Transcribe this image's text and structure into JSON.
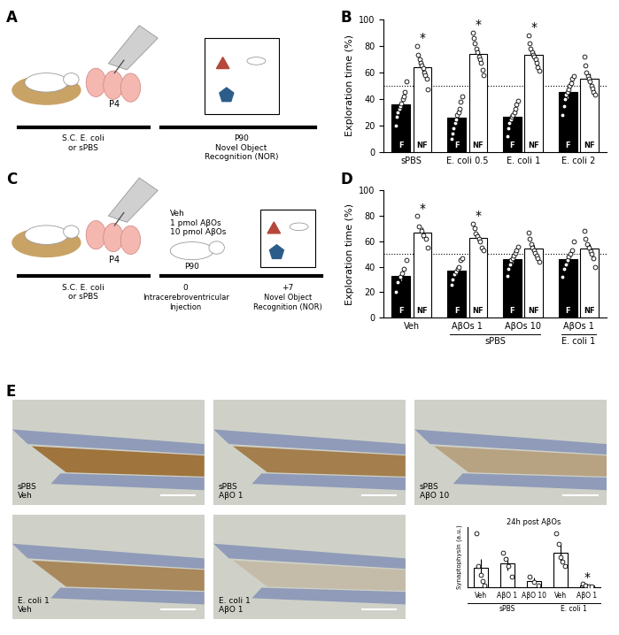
{
  "chart_data": [
    {
      "type": "bar",
      "letter": "B",
      "ylabel": "Exploration time (%)",
      "categories": [
        "sPBS",
        "E. coli 0.5",
        "E. coli 1",
        "E. coli 2"
      ],
      "series": [
        {
          "name": "F",
          "color": "#000000",
          "values": [
            36,
            26,
            27,
            45
          ],
          "errors": [
            4,
            4,
            3,
            4
          ],
          "points": [
            [
              20,
              27,
              30,
              33,
              35,
              37,
              40,
              42,
              45,
              53
            ],
            [
              10,
              14,
              18,
              22,
              25,
              28,
              30,
              33,
              38,
              42
            ],
            [
              12,
              18,
              22,
              25,
              27,
              28,
              30,
              33,
              36,
              39
            ],
            [
              28,
              35,
              40,
              43,
              45,
              47,
              50,
              52,
              55,
              57
            ]
          ]
        },
        {
          "name": "NF",
          "color": "#ffffff",
          "values": [
            64,
            74,
            73,
            55
          ],
          "errors": [
            4,
            4,
            3,
            4
          ],
          "points": [
            [
              80,
              73,
              70,
              67,
              65,
              63,
              60,
              58,
              55,
              47
            ],
            [
              90,
              86,
              82,
              78,
              75,
              72,
              70,
              67,
              62,
              58
            ],
            [
              88,
              82,
              78,
              75,
              73,
              72,
              70,
              67,
              64,
              61
            ],
            [
              72,
              65,
              60,
              57,
              55,
              53,
              50,
              48,
              45,
              43
            ]
          ]
        }
      ],
      "ylim": [
        0,
        100
      ],
      "yticks": [
        0,
        20,
        40,
        60,
        80,
        100
      ],
      "reference_line": 50,
      "annotations": [
        {
          "text": "*",
          "category": 0,
          "series": "NF"
        },
        {
          "text": "*",
          "category": 1,
          "series": "NF"
        },
        {
          "text": "*",
          "category": 2,
          "series": "NF"
        }
      ]
    },
    {
      "type": "bar",
      "letter": "D",
      "ylabel": "Exploration time (%)",
      "categories": [
        "Veh",
        "AβOs 1",
        "AβOs 10",
        "AβOs 1"
      ],
      "groups": [
        {
          "label": "sPBS",
          "categories": [
            1,
            2
          ]
        },
        {
          "label": "E. coli 1",
          "categories": [
            3
          ]
        }
      ],
      "series": [
        {
          "name": "F",
          "color": "#000000",
          "values": [
            33,
            37,
            46,
            46
          ],
          "errors": [
            4,
            3,
            3,
            4
          ],
          "points": [
            [
              20,
              28,
              32,
              35,
              38,
              45
            ],
            [
              26,
              30,
              34,
              36,
              38,
              40,
              45,
              47
            ],
            [
              33,
              38,
              42,
              45,
              47,
              49,
              51,
              53,
              56
            ],
            [
              32,
              38,
              42,
              45,
              48,
              50,
              53,
              60
            ]
          ]
        },
        {
          "name": "NF",
          "color": "#ffffff",
          "values": [
            67,
            63,
            54,
            54
          ],
          "errors": [
            4,
            3,
            3,
            4
          ],
          "points": [
            [
              80,
              72,
              68,
              65,
              62,
              55
            ],
            [
              74,
              70,
              66,
              64,
              62,
              60,
              55,
              53
            ],
            [
              67,
              62,
              58,
              55,
              53,
              51,
              49,
              47,
              44
            ],
            [
              68,
              62,
              58,
              55,
              52,
              50,
              47,
              40
            ]
          ]
        }
      ],
      "ylim": [
        0,
        100
      ],
      "yticks": [
        0,
        20,
        40,
        60,
        80,
        100
      ],
      "reference_line": 50,
      "annotations": [
        {
          "text": "*",
          "category": 0,
          "series": "NF"
        },
        {
          "text": "*",
          "category": 1,
          "series": "NF"
        }
      ]
    },
    {
      "type": "bar",
      "title": "24h post AβOs",
      "ylabel": "Synaptophysin (a.u.)",
      "categories": [
        "Veh",
        "AβO 1",
        "AβO 10",
        "Veh",
        "AβO 1"
      ],
      "groups": [
        {
          "label": "sPBS",
          "categories": [
            0,
            1,
            2
          ]
        },
        {
          "label": "E. coli 1",
          "categories": [
            3,
            4
          ]
        }
      ],
      "series": [
        {
          "color": "#ffffff",
          "values": [
            9,
            11,
            3,
            16,
            1
          ],
          "errors": [
            4,
            3,
            1.5,
            4,
            0.5
          ],
          "points": [
            [
              25,
              10,
              6,
              3,
              1
            ],
            [
              16,
              13,
              10,
              5
            ],
            [
              5,
              2.5,
              1
            ],
            [
              25,
              20,
              14,
              12,
              10
            ],
            [
              1.5,
              1,
              0.5,
              0.3
            ]
          ]
        }
      ],
      "ylim": [
        0,
        28
      ],
      "yticks": [],
      "tick_labels": "x",
      "annotations": [
        {
          "text": "*",
          "category": 4
        }
      ]
    }
  ],
  "diagrams": [
    {
      "letter": "A",
      "birth": "P4",
      "treatment": "S.C. E. coli\nor sPBS",
      "test": "P90\nNovel Object\nRecognition (NOR)"
    },
    {
      "letter": "C",
      "birth": "P4",
      "treatment": "S.C. E. coli\nor sPBS",
      "injection_options": "Veh\n1 pmol AβOs\n10 pmol AβOs",
      "adult": "P90",
      "day0": "0",
      "day0_label": "Intracerebroventricular\nInjection",
      "day7": "+7",
      "day7_label": "Novel Object\nRecognition (NOR)"
    }
  ],
  "images": {
    "letter": "E",
    "labels": [
      "sPBS\nVeh",
      "sPBS\nAβO 1",
      "sPBS\nAβO 10",
      "E. coli 1\nVeh",
      "E. coli 1\nAβO 1"
    ]
  }
}
